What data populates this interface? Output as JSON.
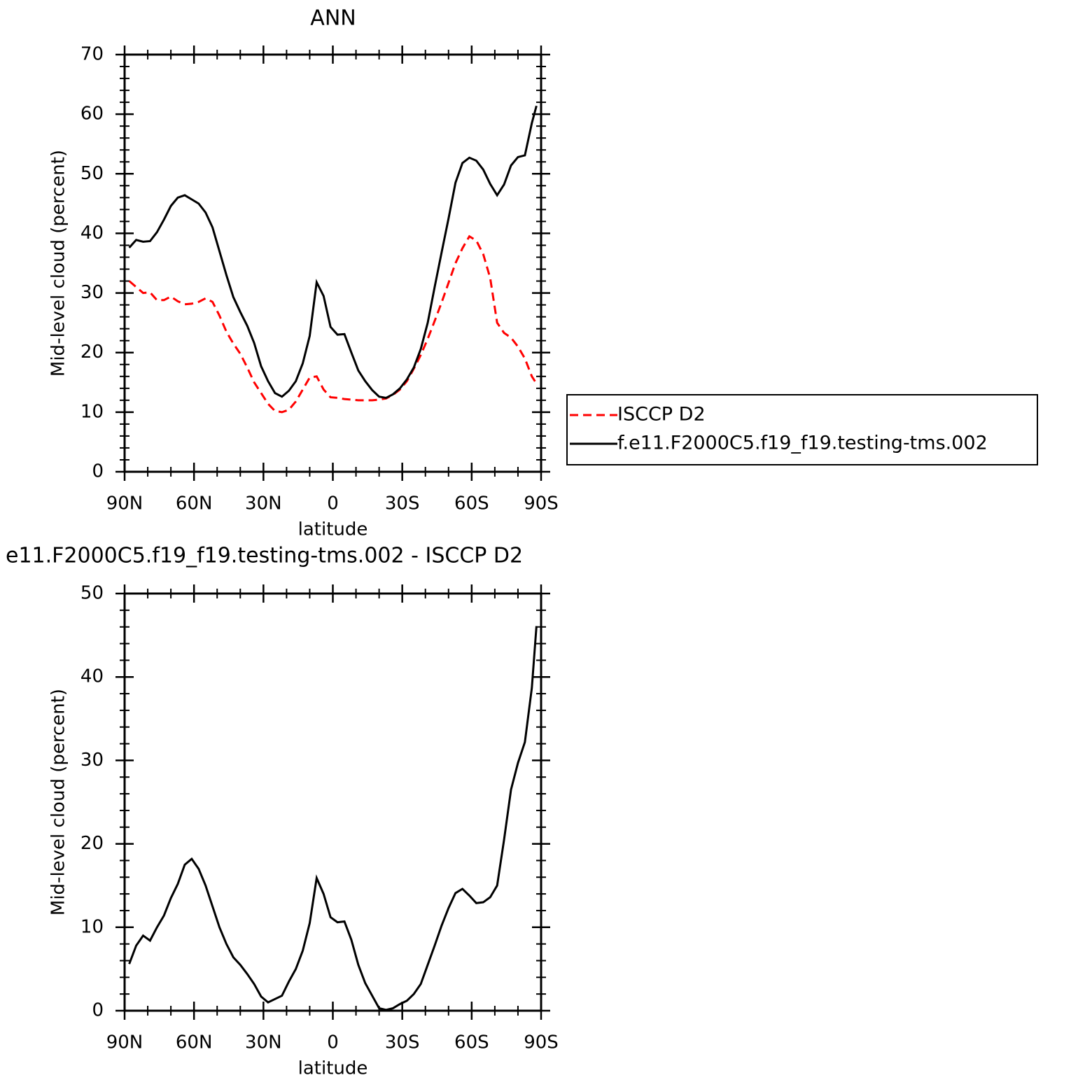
{
  "chart_data": [
    {
      "type": "line",
      "title": "ANN",
      "xlabel": "latitude",
      "ylabel": "Mid-level cloud (percent)",
      "x": [
        88,
        85,
        82,
        79,
        76,
        73,
        70,
        67,
        64,
        61,
        58,
        55,
        52,
        49,
        46,
        43,
        40,
        37,
        34,
        31,
        28,
        25,
        22,
        19,
        16,
        13,
        10,
        7,
        4,
        1,
        -2,
        -5,
        -8,
        -11,
        -14,
        -17,
        -20,
        -23,
        -26,
        -29,
        -32,
        -35,
        -38,
        -41,
        -44,
        -47,
        -50,
        -53,
        -56,
        -59,
        -62,
        -65,
        -68,
        -71,
        -74,
        -77,
        -80,
        -83,
        -86,
        -88
      ],
      "xlim": [
        90,
        -90
      ],
      "xticks": [
        {
          "value": 90,
          "label": "90N"
        },
        {
          "value": 60,
          "label": "60N"
        },
        {
          "value": 30,
          "label": "30N"
        },
        0,
        {
          "value": -30,
          "label": "30S"
        },
        {
          "value": -60,
          "label": "60S"
        },
        {
          "value": -90,
          "label": "90S"
        }
      ],
      "ylim": [
        0,
        70
      ],
      "yticks": [
        0,
        10,
        20,
        30,
        40,
        50,
        60,
        70
      ],
      "legend": "right",
      "series": [
        {
          "name": "ISCCP D2",
          "color": "#ff0000",
          "linestyle": "dashed",
          "values": [
            32.0,
            31.0,
            30.0,
            30.1,
            28.8,
            28.8,
            29.4,
            28.6,
            28.1,
            28.2,
            28.5,
            29.1,
            28.5,
            26.2,
            23.5,
            21.5,
            19.8,
            17.5,
            15.0,
            13.2,
            11.4,
            10.2,
            10.0,
            10.4,
            11.8,
            13.8,
            15.8,
            16.0,
            13.8,
            12.5,
            12.4,
            12.2,
            12.1,
            12.0,
            12.0,
            12.0,
            12.1,
            12.3,
            12.9,
            13.8,
            15.2,
            17.3,
            19.6,
            22.3,
            25.3,
            28.4,
            31.7,
            35.0,
            37.5,
            39.5,
            38.8,
            36.5,
            32.5,
            25.0,
            23.3,
            22.5,
            21.0,
            19.0,
            16.0,
            14.8
          ]
        },
        {
          "name": "f.e11.F2000C5.f19_f19.testing-tms.002",
          "color": "#000000",
          "linestyle": "solid",
          "values": [
            37.6,
            38.9,
            38.6,
            38.7,
            40.2,
            42.3,
            44.6,
            46.0,
            46.4,
            45.7,
            45.0,
            43.5,
            41.0,
            37.0,
            33.0,
            29.3,
            26.8,
            24.5,
            21.6,
            17.7,
            15.2,
            13.2,
            12.6,
            13.6,
            15.2,
            18.2,
            22.8,
            31.8,
            29.5,
            24.3,
            23.0,
            23.1,
            20.0,
            17.0,
            15.2,
            13.7,
            12.6,
            12.4,
            13.0,
            14.0,
            15.5,
            17.5,
            20.6,
            25.0,
            31.0,
            36.8,
            42.5,
            48.5,
            51.8,
            52.7,
            52.2,
            50.7,
            48.3,
            46.4,
            48.2,
            51.4,
            52.8,
            53.1,
            58.5,
            61.4
          ]
        }
      ]
    },
    {
      "type": "line",
      "title": "e11.F2000C5.f19_f19.testing-tms.002 - ISCCP D2",
      "xlabel": "latitude",
      "ylabel": "Mid-level cloud (percent)",
      "x": [
        88,
        85,
        82,
        79,
        76,
        73,
        70,
        67,
        64,
        61,
        58,
        55,
        52,
        49,
        46,
        43,
        40,
        37,
        34,
        31,
        28,
        25,
        22,
        19,
        16,
        13,
        10,
        7,
        4,
        1,
        -2,
        -5,
        -8,
        -11,
        -14,
        -17,
        -20,
        -23,
        -26,
        -29,
        -32,
        -35,
        -38,
        -41,
        -44,
        -47,
        -50,
        -53,
        -56,
        -59,
        -62,
        -65,
        -68,
        -71,
        -74,
        -77,
        -80,
        -83,
        -86,
        -88
      ],
      "xlim": [
        90,
        -90
      ],
      "xticks": [
        {
          "value": 90,
          "label": "90N"
        },
        {
          "value": 60,
          "label": "60N"
        },
        {
          "value": 30,
          "label": "30N"
        },
        0,
        {
          "value": -30,
          "label": "30S"
        },
        {
          "value": -60,
          "label": "60S"
        },
        {
          "value": -90,
          "label": "90S"
        }
      ],
      "ylim": [
        0,
        50
      ],
      "yticks": [
        0,
        10,
        20,
        30,
        40,
        50
      ],
      "series": [
        {
          "color": "#000000",
          "linestyle": "solid",
          "values": [
            5.6,
            7.8,
            9.0,
            8.4,
            10.0,
            11.4,
            13.5,
            15.2,
            17.5,
            18.2,
            17.0,
            15.0,
            12.5,
            10.0,
            8.0,
            6.4,
            5.5,
            4.4,
            3.2,
            1.7,
            1.0,
            1.4,
            1.8,
            3.5,
            5.0,
            7.2,
            10.5,
            15.9,
            14.0,
            11.2,
            10.6,
            10.7,
            8.5,
            5.5,
            3.3,
            1.8,
            0.3,
            0.1,
            0.3,
            0.8,
            1.2,
            2.0,
            3.2,
            5.5,
            7.8,
            10.2,
            12.3,
            14.1,
            14.6,
            13.8,
            12.9,
            13.0,
            13.6,
            15.0,
            20.5,
            26.5,
            29.7,
            32.2,
            38.7,
            46.1
          ]
        }
      ]
    }
  ]
}
